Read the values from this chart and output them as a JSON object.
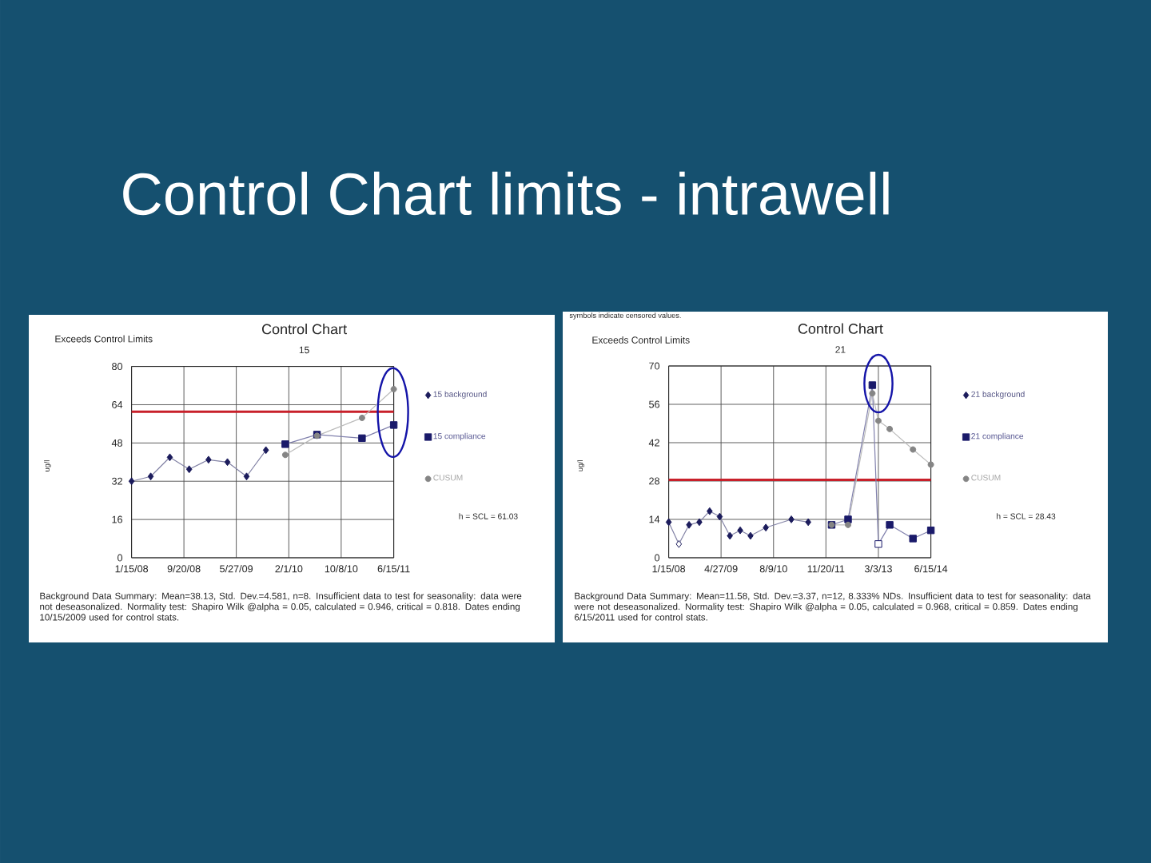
{
  "chart_data": [
    {
      "type": "other",
      "title": "Control Chart limits - intrawell"
    },
    {
      "type": "line",
      "title": "Control Chart",
      "subtitle": "15",
      "ylabel": "ug/l",
      "annotations": [
        "Exceeds Control Limits",
        "h = SCL = 61.03",
        "Background Data Summary: Mean=38.13, Std. Dev.=4.581, n=8. Insufficient data to test for seasonality: data were not deseasonalized. Normality test: Shapiro Wilk @alpha = 0.05, calculated = 0.946, critical = 0.818. Dates ending 10/15/2009 used for control stats."
      ],
      "xlim": [
        "2008-01-15",
        "2011-06-15"
      ],
      "xticks": [
        {
          "value": "2008-01-15",
          "label": "1/15/08"
        },
        {
          "value": "2008-09-20",
          "label": "9/20/08"
        },
        {
          "value": "2009-05-27",
          "label": "5/27/09"
        },
        {
          "value": "2010-02-01",
          "label": "2/1/10"
        },
        {
          "value": "2010-10-08",
          "label": "10/8/10"
        },
        {
          "value": "2011-06-15",
          "label": "6/15/11"
        }
      ],
      "ylim": [
        0,
        80
      ],
      "yticks": [
        0,
        16,
        32,
        48,
        64,
        80
      ],
      "grid": true,
      "legend": "right",
      "series": [
        {
          "name": "15 background",
          "marker": "diamond",
          "color": "#1c1c5c",
          "x": [
            "2008-01-15",
            "2008-04-15",
            "2008-07-15",
            "2008-10-15",
            "2009-01-15",
            "2009-04-15",
            "2009-07-15",
            "2009-10-15"
          ],
          "values": [
            32,
            34,
            42,
            37,
            41,
            40,
            34,
            45
          ]
        },
        {
          "name": "15 compliance",
          "marker": "square",
          "color": "#1a1a6a",
          "x": [
            "2010-01-15",
            "2010-06-15",
            "2011-01-15",
            "2011-06-15"
          ],
          "values": [
            47.5,
            51.5,
            50,
            55.5
          ]
        },
        {
          "name": "CUSUM",
          "marker": "circle",
          "color": "#858585",
          "x": [
            "2010-01-15",
            "2010-06-15",
            "2011-01-15",
            "2011-06-15"
          ],
          "values": [
            43,
            51,
            58.5,
            70.5
          ]
        }
      ],
      "ref_lines": [
        {
          "axis": "y",
          "value": 61.03,
          "color": "#c8202a"
        }
      ]
    },
    {
      "type": "line",
      "title": "Control Chart",
      "subtitle": "21",
      "ylabel": "ug/l",
      "annotations": [
        "symbols indicate censored values.",
        "Exceeds Control Limits",
        "h = SCL = 28.43",
        "Background Data Summary: Mean=11.58, Std. Dev.=3.37, n=12, 8.333% NDs. Insufficient data to test for seasonality: data were not deseasonalized. Normality test: Shapiro Wilk @alpha = 0.05, calculated = 0.968, critical = 0.859. Dates ending 6/15/2011 used for control stats."
      ],
      "xlim": [
        "2008-01-15",
        "2014-06-15"
      ],
      "xticks": [
        {
          "value": "2008-01-15",
          "label": "1/15/08"
        },
        {
          "value": "2009-04-27",
          "label": "4/27/09"
        },
        {
          "value": "2010-08-09",
          "label": "8/9/10"
        },
        {
          "value": "2011-11-20",
          "label": "11/20/11"
        },
        {
          "value": "2013-03-03",
          "label": "3/3/13"
        },
        {
          "value": "2014-06-15",
          "label": "6/15/14"
        }
      ],
      "ylim": [
        0,
        70
      ],
      "yticks": [
        0,
        14,
        28,
        42,
        56,
        70
      ],
      "grid": true,
      "legend": "right",
      "series": [
        {
          "name": "21 background",
          "marker": "diamond",
          "color": "#1c1c5c",
          "x": [
            "2008-01-15",
            "2008-04-15",
            "2008-07-15",
            "2008-10-15",
            "2009-01-15",
            "2009-04-15",
            "2009-07-15",
            "2009-10-15",
            "2010-01-15",
            "2010-06-01",
            "2011-01-15",
            "2011-06-15"
          ],
          "values": [
            13,
            5,
            12,
            13,
            17,
            15,
            8,
            10,
            8,
            11,
            14,
            13
          ],
          "colors": [
            "#1c1c5c",
            "#ffffff",
            "#1c1c5c",
            "#1c1c5c",
            "#1c1c5c",
            "#1c1c5c",
            "#1c1c5c",
            "#1c1c5c",
            "#1c1c5c",
            "#1c1c5c",
            "#1c1c5c",
            "#1c1c5c"
          ]
        },
        {
          "name": "21 compliance",
          "marker": "square",
          "color": "#1a1a6a",
          "x": [
            "2012-01-10",
            "2012-06-05",
            "2013-01-08",
            "2013-03-03",
            "2013-06-12",
            "2014-01-06",
            "2014-06-15"
          ],
          "values": [
            12,
            14,
            63,
            5,
            12,
            7,
            10
          ],
          "colors": [
            "#1a1a6a",
            "#1a1a6a",
            "#1a1a6a",
            "#ffffff",
            "#1a1a6a",
            "#1a1a6a",
            "#1a1a6a"
          ]
        },
        {
          "name": "CUSUM",
          "marker": "circle",
          "color": "#858585",
          "x": [
            "2012-01-10",
            "2012-06-05",
            "2013-01-08",
            "2013-03-03",
            "2013-06-12",
            "2014-01-06",
            "2014-06-15"
          ],
          "values": [
            12,
            12,
            60,
            50,
            47,
            39.5,
            34
          ]
        }
      ],
      "ref_lines": [
        {
          "axis": "y",
          "value": 28.43,
          "color": "#c8202a"
        }
      ]
    }
  ]
}
